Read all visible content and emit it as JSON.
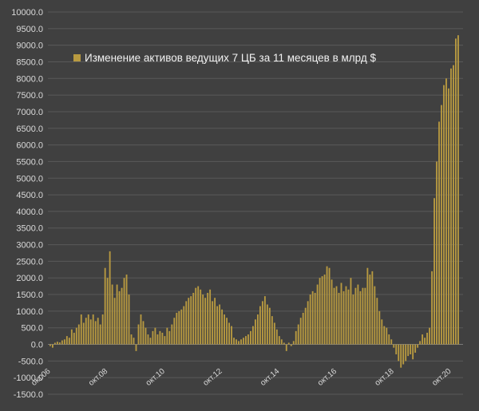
{
  "chart_data": {
    "type": "bar",
    "legend": {
      "label": "Изменение активов ведущих 7 ЦБ за 11 месяцев в млрд $",
      "position": "top-left-inside"
    },
    "ylim": [
      -1500,
      10000
    ],
    "y_ticks": [
      "10000.0",
      "9500.0",
      "9000.0",
      "8500.0",
      "8000.0",
      "7500.0",
      "7000.0",
      "6500.0",
      "6000.0",
      "5500.0",
      "5000.0",
      "4500.0",
      "4000.0",
      "3500.0",
      "3000.0",
      "2500.0",
      "2000.0",
      "1500.0",
      "1000.0",
      "500.0",
      "0.0",
      "-500.0",
      "-1000.0",
      "-1500.0"
    ],
    "x_tick_labels": [
      "окт.06",
      "окт.08",
      "окт.10",
      "окт.12",
      "окт.14",
      "окт.16",
      "окт.18",
      "окт.20"
    ],
    "grid": true,
    "colors": {
      "bar": "#b89a40",
      "background": "#404040",
      "gridline": "#595959",
      "text": "#d9d9d9"
    },
    "values": [
      -50,
      -100,
      50,
      80,
      60,
      120,
      150,
      250,
      200,
      450,
      350,
      500,
      600,
      900,
      650,
      800,
      900,
      750,
      900,
      700,
      800,
      600,
      900,
      2300,
      2000,
      2800,
      1800,
      1400,
      1800,
      1600,
      1700,
      2000,
      2100,
      1500,
      300,
      200,
      -200,
      600,
      900,
      700,
      500,
      300,
      200,
      400,
      500,
      300,
      400,
      350,
      250,
      500,
      400,
      600,
      800,
      950,
      1000,
      1050,
      1150,
      1300,
      1400,
      1450,
      1550,
      1700,
      1750,
      1650,
      1500,
      1400,
      1550,
      1650,
      1300,
      1400,
      1150,
      1200,
      1050,
      900,
      800,
      650,
      550,
      200,
      150,
      100,
      150,
      200,
      250,
      300,
      400,
      550,
      750,
      900,
      1150,
      1300,
      1450,
      1200,
      1100,
      850,
      650,
      450,
      250,
      150,
      50,
      -200,
      50,
      -50,
      100,
      400,
      600,
      800,
      950,
      1100,
      1300,
      1500,
      1600,
      1550,
      1800,
      2000,
      2050,
      2100,
      2350,
      2300,
      1950,
      1700,
      1750,
      1550,
      1850,
      1600,
      1750,
      1650,
      2000,
      1500,
      1700,
      1800,
      1600,
      1700,
      1700,
      2300,
      2100,
      2200,
      1750,
      1400,
      1000,
      750,
      550,
      500,
      300,
      150,
      -100,
      -300,
      -500,
      -700,
      -600,
      -500,
      -350,
      -300,
      -450,
      -250,
      -100,
      100,
      300,
      200,
      350,
      500,
      2200,
      4400,
      5500,
      6700,
      7200,
      7800,
      8000,
      7700,
      8300,
      8400,
      9200,
      9300
    ]
  }
}
